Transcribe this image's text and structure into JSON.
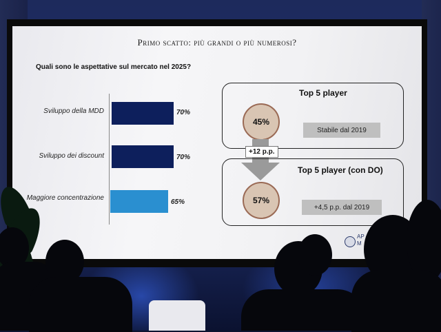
{
  "slide": {
    "title": "Primo scatto: più grandi o più numerosi?",
    "question": "Quali sono le aspettative sul mercato nel 2025?",
    "bars": [
      {
        "label": "Sviluppo della MDD",
        "value": "70%",
        "color": "#0d1f5c"
      },
      {
        "label": "Sviluppo dei discount",
        "value": "70%",
        "color": "#0d1f5c"
      },
      {
        "label": "Maggiore concentrazione",
        "value": "65%",
        "color": "#2a8fd0"
      }
    ],
    "top_box": {
      "title": "Top 5 player",
      "circle": "45%",
      "note": "Stabile dal 2019"
    },
    "delta": "+12 p.p.",
    "bottom_box": {
      "title": "Top 5 player (con DO)",
      "circle": "57%",
      "note": "+4,5 p.p. dal 2019"
    },
    "logo_text_1": "AP",
    "logo_text_2": "M"
  }
}
